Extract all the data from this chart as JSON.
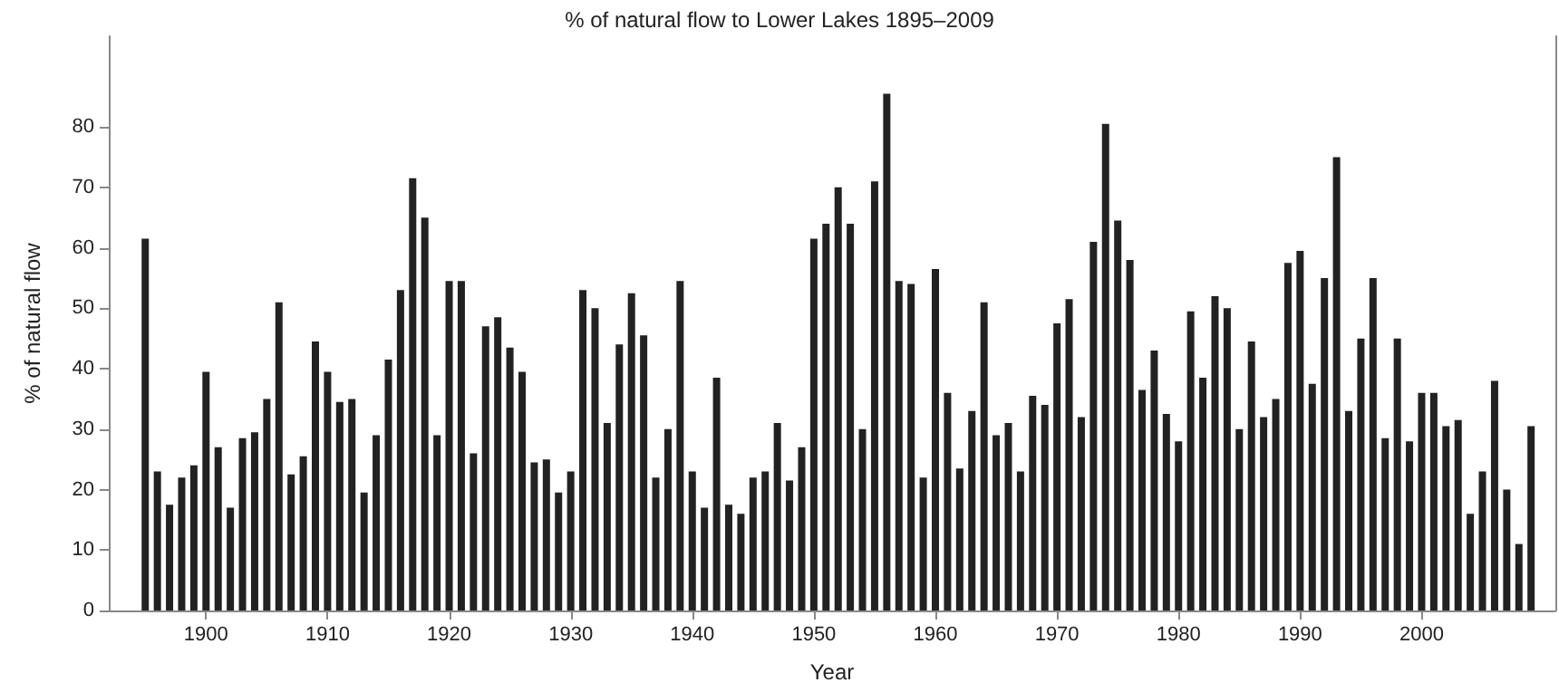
{
  "chart_data": {
    "type": "bar",
    "title": "% of natural flow to Lower Lakes 1895–2009",
    "xlabel": "Year",
    "ylabel": "% of natural flow",
    "x": [
      1895,
      1896,
      1897,
      1898,
      1899,
      1900,
      1901,
      1902,
      1903,
      1904,
      1905,
      1906,
      1907,
      1908,
      1909,
      1910,
      1911,
      1912,
      1913,
      1914,
      1915,
      1916,
      1917,
      1918,
      1919,
      1920,
      1921,
      1922,
      1923,
      1924,
      1925,
      1926,
      1927,
      1928,
      1929,
      1930,
      1931,
      1932,
      1933,
      1934,
      1935,
      1936,
      1937,
      1938,
      1939,
      1940,
      1941,
      1942,
      1943,
      1944,
      1945,
      1946,
      1947,
      1948,
      1949,
      1950,
      1951,
      1952,
      1953,
      1954,
      1955,
      1956,
      1957,
      1958,
      1959,
      1960,
      1961,
      1962,
      1963,
      1964,
      1965,
      1966,
      1967,
      1968,
      1969,
      1970,
      1971,
      1972,
      1973,
      1974,
      1975,
      1976,
      1977,
      1978,
      1979,
      1980,
      1981,
      1982,
      1983,
      1984,
      1985,
      1986,
      1987,
      1988,
      1989,
      1990,
      1991,
      1992,
      1993,
      1994,
      1995,
      1996,
      1997,
      1998,
      1999,
      2000,
      2001,
      2002,
      2003,
      2004,
      2005,
      2006,
      2007,
      2008,
      2009
    ],
    "values": [
      61.5,
      23,
      17.5,
      22,
      24,
      39.5,
      27,
      17,
      28.5,
      29.5,
      35,
      51,
      22.5,
      25.5,
      44.5,
      39.5,
      34.5,
      35,
      19.5,
      29,
      41.5,
      53,
      71.5,
      65,
      29,
      54.5,
      54.5,
      26,
      47,
      48.5,
      43.5,
      39.5,
      24.5,
      25,
      19.5,
      23,
      53,
      50,
      31,
      44,
      52.5,
      45.5,
      22,
      30,
      54.5,
      23,
      17,
      38.5,
      17.5,
      16,
      22,
      23,
      31,
      21.5,
      27,
      61.5,
      64,
      70,
      64,
      30,
      71,
      85.5,
      54.5,
      54,
      22,
      56.5,
      36,
      23.5,
      33,
      51,
      29,
      31,
      23,
      35.5,
      34,
      47.5,
      51.5,
      32,
      61,
      80.5,
      64.5,
      58,
      36.5,
      43,
      32.5,
      28,
      49.5,
      38.5,
      52,
      50,
      30,
      44.5,
      32,
      35,
      57.5,
      59.5,
      37.5,
      55,
      75,
      33,
      45,
      55,
      28.5,
      45,
      28,
      36,
      36,
      30.5,
      31.5,
      16,
      23,
      38,
      20,
      11,
      30.5
    ],
    "color": "#222222",
    "xlim": [
      1892,
      2011
    ],
    "xticks": [
      1900,
      1910,
      1920,
      1930,
      1940,
      1950,
      1960,
      1970,
      1980,
      1990,
      2000
    ],
    "ylim": [
      0,
      95
    ],
    "yticks": [
      0,
      10,
      20,
      30,
      40,
      50,
      60,
      70,
      80
    ],
    "grid": false
  }
}
